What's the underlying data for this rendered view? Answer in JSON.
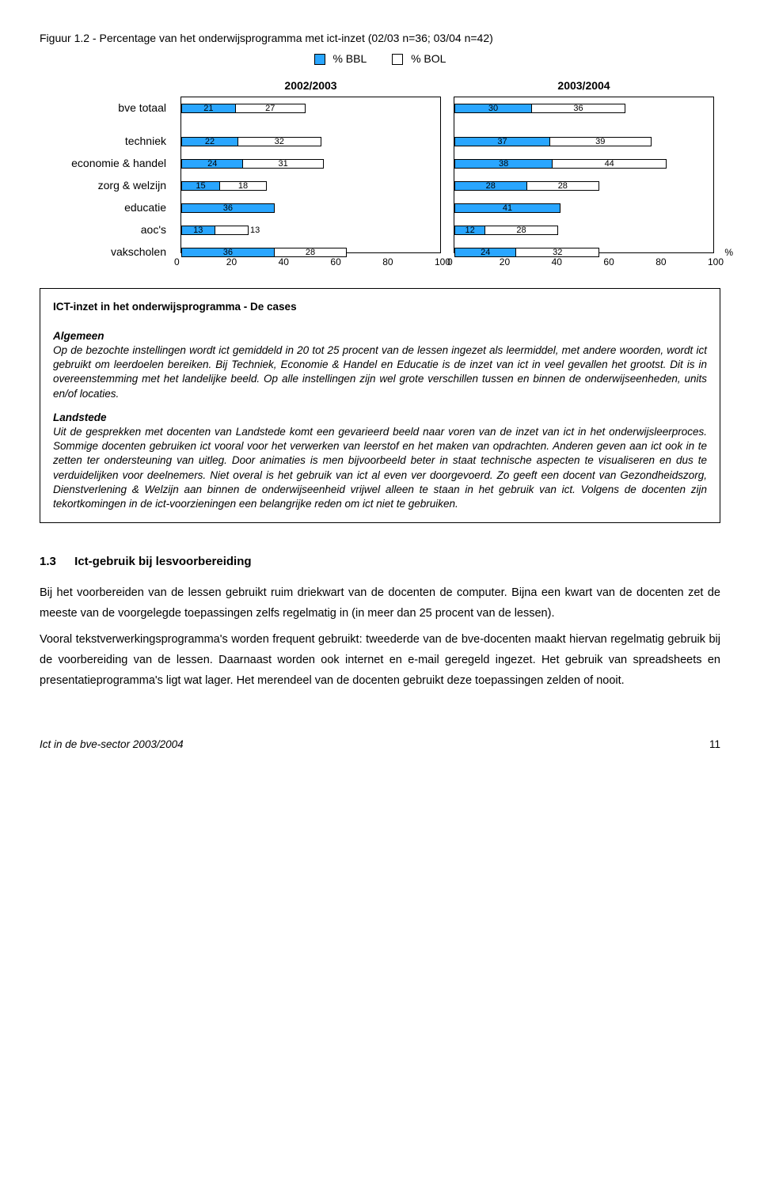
{
  "figure": {
    "title": "Figuur 1.2 - Percentage van het onderwijsprogramma met ict-inzet (02/03 n=36; 03/04 n=42)",
    "legend": [
      {
        "label": "% BBL",
        "color": "#2aa6ff"
      },
      {
        "label": "% BOL",
        "color": "#ffffff"
      }
    ],
    "categories": [
      "bve totaal",
      "techniek",
      "economie & handel",
      "zorg & welzijn",
      "educatie",
      "aoc's",
      "vakscholen"
    ],
    "years": [
      "2002/2003",
      "2003/2004"
    ],
    "xmax": 100,
    "xticks": [
      0,
      20,
      40,
      60,
      80,
      100
    ],
    "data": {
      "2002/2003": {
        "bve totaal": [
          21,
          27
        ],
        "techniek": [
          22,
          32
        ],
        "economie & handel": [
          24,
          31
        ],
        "zorg & welzijn": [
          15,
          18
        ],
        "educatie": [
          36,
          null
        ],
        "aoc's": [
          13,
          13
        ],
        "vakscholen": [
          36,
          28
        ]
      },
      "2003/2004": {
        "bve totaal": [
          30,
          36
        ],
        "techniek": [
          37,
          39
        ],
        "economie & handel": [
          38,
          44
        ],
        "zorg & welzijn": [
          28,
          28
        ],
        "educatie": [
          41,
          null
        ],
        "aoc's": [
          12,
          28
        ],
        "vakscholen": [
          24,
          32
        ]
      }
    },
    "colors": {
      "bbl": "#2aa6ff",
      "bol": "#ffffff",
      "border": "#000000"
    },
    "pct_symbol": "%"
  },
  "box": {
    "heading": "ICT-inzet in het onderwijsprogramma - De cases",
    "algemeen_label": "Algemeen",
    "algemeen_text": "Op de bezochte instellingen wordt ict gemiddeld in 20 tot 25 procent van de lessen ingezet als leermiddel, met andere woorden, wordt ict gebruikt om leerdoelen bereiken. Bij Techniek, Economie & Handel en Educatie is de inzet van ict in veel gevallen het grootst. Dit is in overeenstemming met het landelijke beeld. Op alle instellingen zijn wel grote verschillen tussen en binnen de onderwijseenheden, units en/of locaties.",
    "landstede_label": "Landstede",
    "landstede_text": "Uit de gesprekken met docenten van Landstede komt een gevarieerd beeld naar voren van de inzet van ict in het onderwijsleerproces. Sommige docenten gebruiken ict vooral voor het verwerken van leerstof en het maken van opdrachten. Anderen geven aan ict ook in te zetten ter ondersteuning van uitleg. Door animaties is men bijvoorbeeld beter in staat technische aspecten te visualiseren en dus te verduidelijken voor deelnemers. Niet overal is het gebruik van ict al even ver doorgevoerd. Zo geeft een docent van Gezondheidszorg, Dienstverlening & Welzijn aan binnen de onderwijseenheid vrijwel alleen te staan in het gebruik van ict. Volgens de docenten zijn tekortkomingen in de ict-voorzieningen een belangrijke reden om ict niet te gebruiken."
  },
  "section": {
    "number": "1.3",
    "title": "Ict-gebruik bij lesvoorbereiding",
    "para1": "Bij het voorbereiden van de lessen gebruikt ruim driekwart van de docenten de computer. Bijna een kwart van de docenten zet de meeste van de voorgelegde toepassingen zelfs regelmatig in (in meer dan 25 procent van de lessen).",
    "para2": "Vooral tekstverwerkingsprogramma's worden frequent gebruikt: tweederde van de bve-docenten maakt hiervan regelmatig gebruik bij de voorbereiding van de lessen. Daarnaast worden ook internet en e-mail geregeld ingezet. Het gebruik van spreadsheets en presentatieprogramma's ligt wat lager. Het merendeel van de docenten gebruikt deze toepassingen zelden of nooit."
  },
  "footer": {
    "left": "Ict in de bve-sector 2003/2004",
    "page": "11"
  }
}
